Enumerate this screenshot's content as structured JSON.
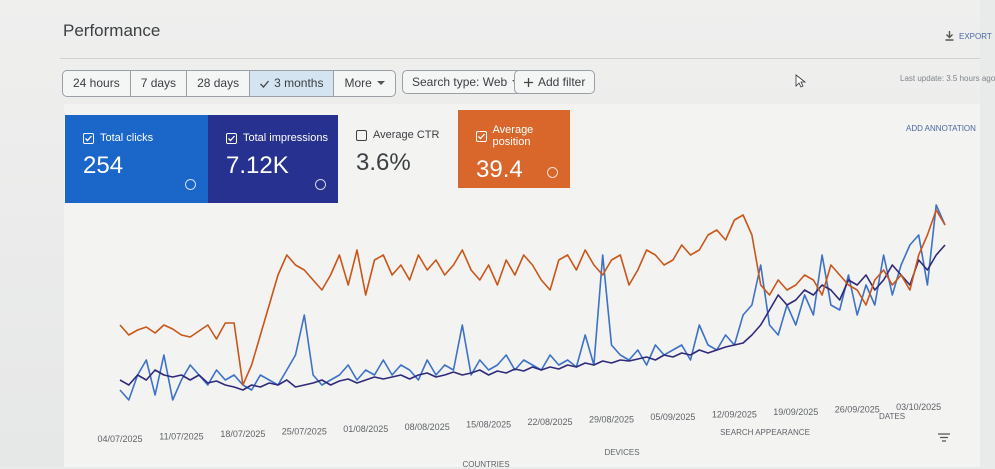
{
  "header": {
    "title": "Performance",
    "export": "EXPORT",
    "last_update": "Last update: 3.5 hours ago"
  },
  "toolbar": {
    "ranges": [
      "24 hours",
      "7 days",
      "28 days",
      "3 months",
      "More"
    ],
    "selected": 3,
    "search_type": "Search type: Web",
    "add_filter": "Add filter"
  },
  "annotation": "ADD ANNOTATION",
  "hidden_metric": {
    "name": "Average CTR",
    "total": "3.6%"
  },
  "tabs": [
    "COUNTRIES",
    "DEVICES",
    "SEARCH APPEARANCE",
    "DATES"
  ],
  "chart_data": {
    "type": "line",
    "categories": [
      "04/07/2025",
      null,
      null,
      null,
      null,
      null,
      null,
      "11/07/2025",
      null,
      null,
      null,
      null,
      null,
      null,
      "18/07/2025",
      null,
      null,
      null,
      null,
      null,
      null,
      "25/07/2025",
      null,
      null,
      null,
      null,
      null,
      null,
      "01/08/2025",
      null,
      null,
      null,
      null,
      null,
      null,
      "08/08/2025",
      null,
      null,
      null,
      null,
      null,
      null,
      "15/08/2025",
      null,
      null,
      null,
      null,
      null,
      null,
      "22/08/2025",
      null,
      null,
      null,
      null,
      null,
      null,
      "29/08/2025",
      null,
      null,
      null,
      null,
      null,
      null,
      "05/09/2025",
      null,
      null,
      null,
      null,
      null,
      null,
      "12/09/2025",
      null,
      null,
      null,
      null,
      null,
      null,
      "19/09/2025",
      null,
      null,
      null,
      null,
      null,
      null,
      "26/09/2025",
      null,
      null,
      null,
      null,
      null,
      null,
      "03/10/2025",
      null,
      null,
      null
    ],
    "series": [
      {
        "name": "Total clicks",
        "total": "254",
        "color": "#3d72c6",
        "card_color": "#1a66c9",
        "values": [
          15,
          5,
          30,
          45,
          10,
          50,
          5,
          25,
          40,
          30,
          20,
          35,
          25,
          30,
          20,
          15,
          30,
          25,
          20,
          35,
          50,
          90,
          30,
          20,
          25,
          30,
          40,
          25,
          35,
          30,
          45,
          30,
          40,
          35,
          25,
          45,
          30,
          40,
          35,
          80,
          30,
          45,
          35,
          40,
          50,
          35,
          45,
          40,
          35,
          50,
          40,
          45,
          38,
          70,
          40,
          150,
          60,
          50,
          45,
          55,
          40,
          60,
          50,
          55,
          60,
          45,
          80,
          60,
          55,
          70,
          60,
          90,
          100,
          140,
          80,
          70,
          100,
          80,
          110,
          90,
          150,
          100,
          95,
          130,
          90,
          120,
          100,
          150,
          110,
          140,
          160,
          170,
          120,
          200,
          180
        ]
      },
      {
        "name": "Total impressions",
        "total": "7.12K",
        "color": "#2f2a7a",
        "card_color": "#27318f",
        "values": [
          25,
          20,
          30,
          25,
          35,
          30,
          28,
          30,
          25,
          30,
          22,
          24,
          20,
          18,
          15,
          20,
          18,
          22,
          20,
          25,
          18,
          20,
          22,
          25,
          20,
          24,
          26,
          22,
          25,
          28,
          26,
          28,
          30,
          26,
          30,
          32,
          28,
          30,
          33,
          30,
          32,
          35,
          30,
          34,
          32,
          36,
          34,
          38,
          35,
          38,
          36,
          40,
          38,
          42,
          40,
          44,
          42,
          45,
          44,
          46,
          48,
          45,
          50,
          48,
          52,
          50,
          55,
          52,
          55,
          58,
          60,
          62,
          70,
          80,
          95,
          110,
          100,
          105,
          115,
          110,
          120,
          115,
          105,
          125,
          120,
          130,
          115,
          125,
          140,
          130,
          120,
          145,
          135,
          150,
          160
        ]
      },
      {
        "name": "Average position",
        "total": "39.4",
        "color": "#c9561a",
        "card_color": "#d9662a",
        "values": [
          80,
          70,
          75,
          78,
          72,
          80,
          76,
          70,
          68,
          74,
          80,
          66,
          82,
          82,
          20,
          40,
          70,
          100,
          130,
          150,
          140,
          135,
          125,
          115,
          130,
          150,
          120,
          155,
          110,
          145,
          150,
          130,
          140,
          125,
          150,
          135,
          145,
          130,
          140,
          155,
          135,
          125,
          140,
          120,
          145,
          130,
          150,
          140,
          125,
          115,
          145,
          150,
          135,
          155,
          140,
          130,
          145,
          150,
          120,
          135,
          155,
          150,
          140,
          145,
          160,
          150,
          155,
          170,
          175,
          165,
          185,
          190,
          170,
          120,
          110,
          125,
          115,
          120,
          130,
          125,
          110,
          140,
          130,
          120,
          115,
          100,
          125,
          135,
          120,
          130,
          115,
          150,
          170,
          195,
          180
        ]
      }
    ]
  }
}
